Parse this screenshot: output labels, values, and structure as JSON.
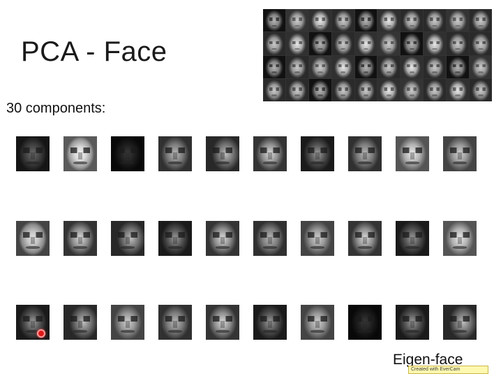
{
  "slide": {
    "title": "PCA - Face",
    "subtitle": "30 components:",
    "footer_label": "Eigen-face",
    "watermark_text": "Created with EverCam"
  },
  "dataset_mosaic": {
    "rows": 4,
    "cols": 10
  },
  "eigenfaces": {
    "rows": [
      {
        "row": 1,
        "count": 10
      },
      {
        "row": 2,
        "count": 10
      },
      {
        "row": 3,
        "count": 10
      }
    ]
  },
  "cursor_marker": {
    "color": "#e01818"
  }
}
